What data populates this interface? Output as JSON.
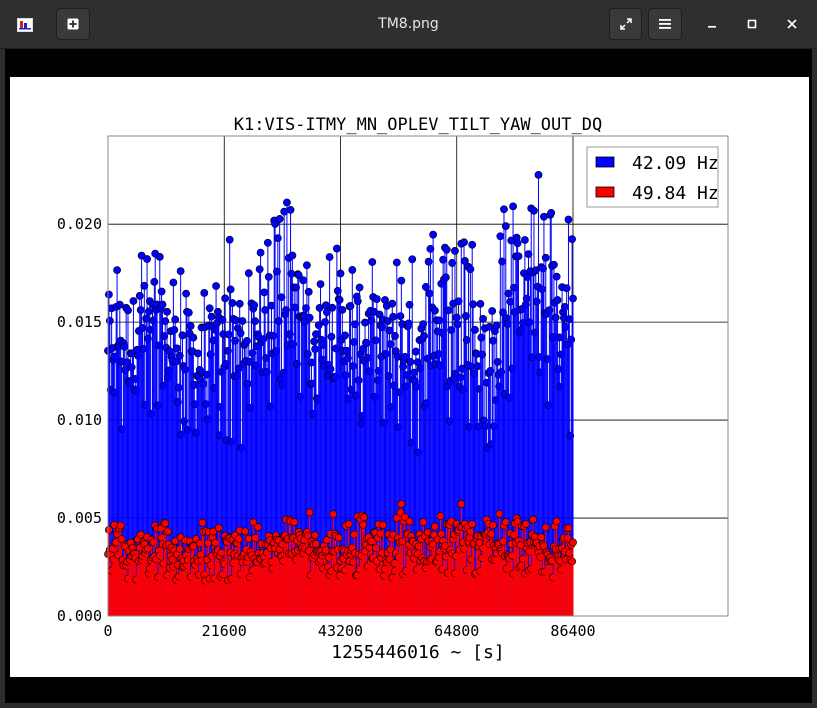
{
  "window": {
    "title": "TM8.png",
    "icons": {
      "app": "plot-app-icon",
      "new_tab": "new-tab-icon",
      "fullscreen": "fullscreen-icon",
      "menu": "hamburger-menu-icon",
      "minimize": "minimize-icon",
      "maximize": "maximize-icon",
      "close": "close-icon"
    }
  },
  "chart_data": {
    "type": "scatter",
    "title": "K1:VIS-ITMY_MN_OPLEV_TILT_YAW_OUT_DQ",
    "xlabel": "1255446016 ~ [s]",
    "ylabel": "",
    "xlim": [
      0,
      115200
    ],
    "ylim": [
      0,
      0.0245
    ],
    "x_ticks": [
      0,
      21600,
      43200,
      64800,
      86400
    ],
    "x_tick_labels": [
      "0",
      "21600",
      "43200",
      "64800",
      "86400"
    ],
    "y_ticks": [
      0,
      0.005,
      0.01,
      0.015,
      0.02
    ],
    "y_tick_labels": [
      "0.000",
      "0.005",
      "0.010",
      "0.015",
      "0.020"
    ],
    "grid": true,
    "legend_position": "top-right",
    "stems": true,
    "series": [
      {
        "name": "42.09 Hz",
        "color": "#0000ff",
        "x": [
          0,
          2700,
          5400,
          8100,
          10800,
          13500,
          16200,
          18900,
          21600,
          24300,
          27000,
          29700,
          32400,
          35100,
          37800,
          40500,
          43200,
          45900,
          48600,
          51300,
          54000,
          56700,
          59400,
          62100,
          64800,
          67500,
          70200,
          72900,
          75600,
          78300,
          81000,
          83700,
          86400
        ],
        "values": [
          0.014,
          0.0132,
          0.0145,
          0.0138,
          0.0135,
          0.014,
          0.0128,
          0.0136,
          0.0139,
          0.0131,
          0.0147,
          0.0162,
          0.016,
          0.0155,
          0.015,
          0.0145,
          0.0148,
          0.0146,
          0.015,
          0.0152,
          0.0131,
          0.0125,
          0.014,
          0.0132,
          0.0145,
          0.0138,
          0.013,
          0.0158,
          0.017,
          0.0167,
          0.0163,
          0.0158,
          0.015
        ],
        "max": [
          0.0185,
          0.0188,
          0.0195,
          0.019,
          0.018,
          0.0178,
          0.0172,
          0.018,
          0.02,
          0.0178,
          0.0188,
          0.0205,
          0.0212,
          0.0208,
          0.0196,
          0.019,
          0.0187,
          0.0192,
          0.0185,
          0.0188,
          0.0185,
          0.0178,
          0.02,
          0.0195,
          0.0192,
          0.019,
          0.0182,
          0.021,
          0.0222,
          0.0226,
          0.0218,
          0.021,
          0.02
        ],
        "min": [
          0.0102,
          0.009,
          0.0098,
          0.0093,
          0.0095,
          0.009,
          0.0085,
          0.009,
          0.0088,
          0.0082,
          0.01,
          0.0105,
          0.0108,
          0.01,
          0.0103,
          0.0098,
          0.01,
          0.0095,
          0.0098,
          0.009,
          0.0087,
          0.0083,
          0.0092,
          0.0087,
          0.009,
          0.0088,
          0.0085,
          0.011,
          0.0115,
          0.011,
          0.0098,
          0.0092,
          0.0088
        ]
      },
      {
        "name": "49.84 Hz",
        "color": "#ff0000",
        "x": [
          0,
          2700,
          5400,
          8100,
          10800,
          13500,
          16200,
          18900,
          21600,
          24300,
          27000,
          29700,
          32400,
          35100,
          37800,
          40500,
          43200,
          45900,
          48600,
          51300,
          54000,
          56700,
          59400,
          62100,
          64800,
          67500,
          70200,
          72900,
          75600,
          78300,
          81000,
          83700,
          86400
        ],
        "values": [
          0.0033,
          0.003,
          0.0034,
          0.0032,
          0.0031,
          0.003,
          0.0032,
          0.0031,
          0.0033,
          0.0032,
          0.0034,
          0.0035,
          0.0036,
          0.0035,
          0.0034,
          0.0036,
          0.0035,
          0.0034,
          0.0036,
          0.0035,
          0.0034,
          0.0033,
          0.0036,
          0.0035,
          0.0036,
          0.0035,
          0.0034,
          0.0035,
          0.0036,
          0.0035,
          0.0034,
          0.0035,
          0.0034
        ],
        "max": [
          0.0047,
          0.0045,
          0.0052,
          0.0048,
          0.0047,
          0.0046,
          0.0048,
          0.0046,
          0.0049,
          0.0047,
          0.0049,
          0.005,
          0.0051,
          0.0053,
          0.005,
          0.0052,
          0.0052,
          0.0062,
          0.0051,
          0.005,
          0.0063,
          0.005,
          0.0052,
          0.005,
          0.0058,
          0.0052,
          0.0053,
          0.005,
          0.0051,
          0.005,
          0.0049,
          0.005,
          0.0048
        ],
        "min": [
          0.0018,
          0.0018,
          0.0019,
          0.0018,
          0.0017,
          0.0018,
          0.0018,
          0.0019,
          0.0018,
          0.0019,
          0.0019,
          0.002,
          0.002,
          0.0019,
          0.002,
          0.002,
          0.0019,
          0.002,
          0.002,
          0.0019,
          0.0019,
          0.002,
          0.0019,
          0.002,
          0.0019,
          0.002,
          0.002,
          0.0019,
          0.002,
          0.0019,
          0.0019,
          0.002,
          0.0019
        ]
      }
    ]
  }
}
